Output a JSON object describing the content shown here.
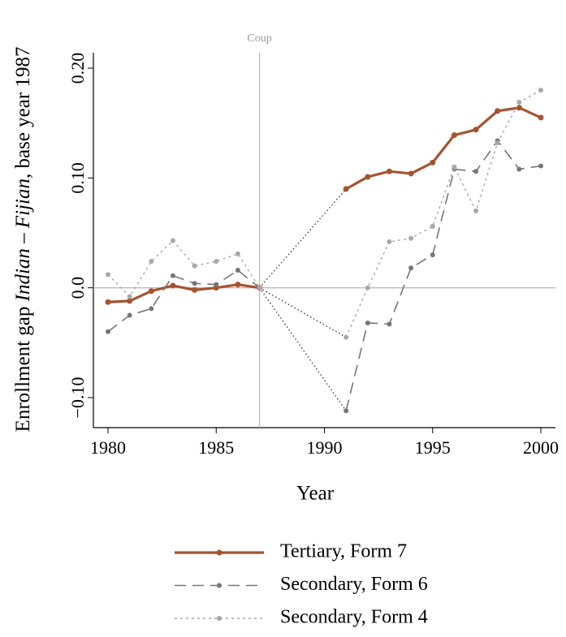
{
  "chart_data": {
    "type": "line",
    "y_label": [
      "Enrollment gap ",
      "Indian",
      " – ",
      "Fijian",
      ", base year 1987"
    ],
    "x_label": "Year",
    "annotation": {
      "text": "Coup",
      "x": 1987
    },
    "hline": 0,
    "x": [
      1980,
      1981,
      1982,
      1983,
      1984,
      1985,
      1986,
      1987,
      1991,
      1992,
      1993,
      1994,
      1995,
      1996,
      1997,
      1998,
      1999,
      2000
    ],
    "series": [
      {
        "name": "Tertiary, Form 7",
        "color": "#a5532f",
        "style": "solid",
        "values": [
          -0.013,
          -0.012,
          -0.003,
          0.002,
          -0.002,
          0.0,
          0.003,
          0.0,
          0.09,
          0.101,
          0.106,
          0.104,
          0.114,
          0.139,
          0.144,
          0.161,
          0.164,
          0.155
        ]
      },
      {
        "name": "Secondary, Form 6",
        "color": "#767676",
        "style": "dashed",
        "values": [
          -0.04,
          -0.025,
          -0.019,
          0.011,
          0.004,
          0.003,
          0.016,
          0.0,
          -0.112,
          -0.032,
          -0.033,
          0.018,
          0.03,
          0.108,
          0.106,
          0.134,
          0.108,
          0.111
        ]
      },
      {
        "name": "Secondary, Form 4",
        "color": "#a8a8a8",
        "style": "dotted",
        "values": [
          0.012,
          -0.008,
          0.024,
          0.043,
          0.02,
          0.024,
          0.031,
          0.0,
          -0.045,
          0.0,
          0.042,
          0.045,
          0.056,
          0.11,
          0.07,
          0.132,
          0.169,
          0.18
        ]
      }
    ],
    "xlim": [
      1980,
      2000
    ],
    "xticks": [
      1980,
      1985,
      1990,
      1995,
      2000
    ],
    "ylim": [
      -0.1,
      0.2
    ],
    "yticks": [
      {
        "value": -0.1,
        "label": "−0.10"
      },
      {
        "value": 0.0,
        "label": "0.0"
      },
      {
        "value": 0.1,
        "label": "0.10"
      },
      {
        "value": 0.2,
        "label": "0.20"
      }
    ]
  }
}
